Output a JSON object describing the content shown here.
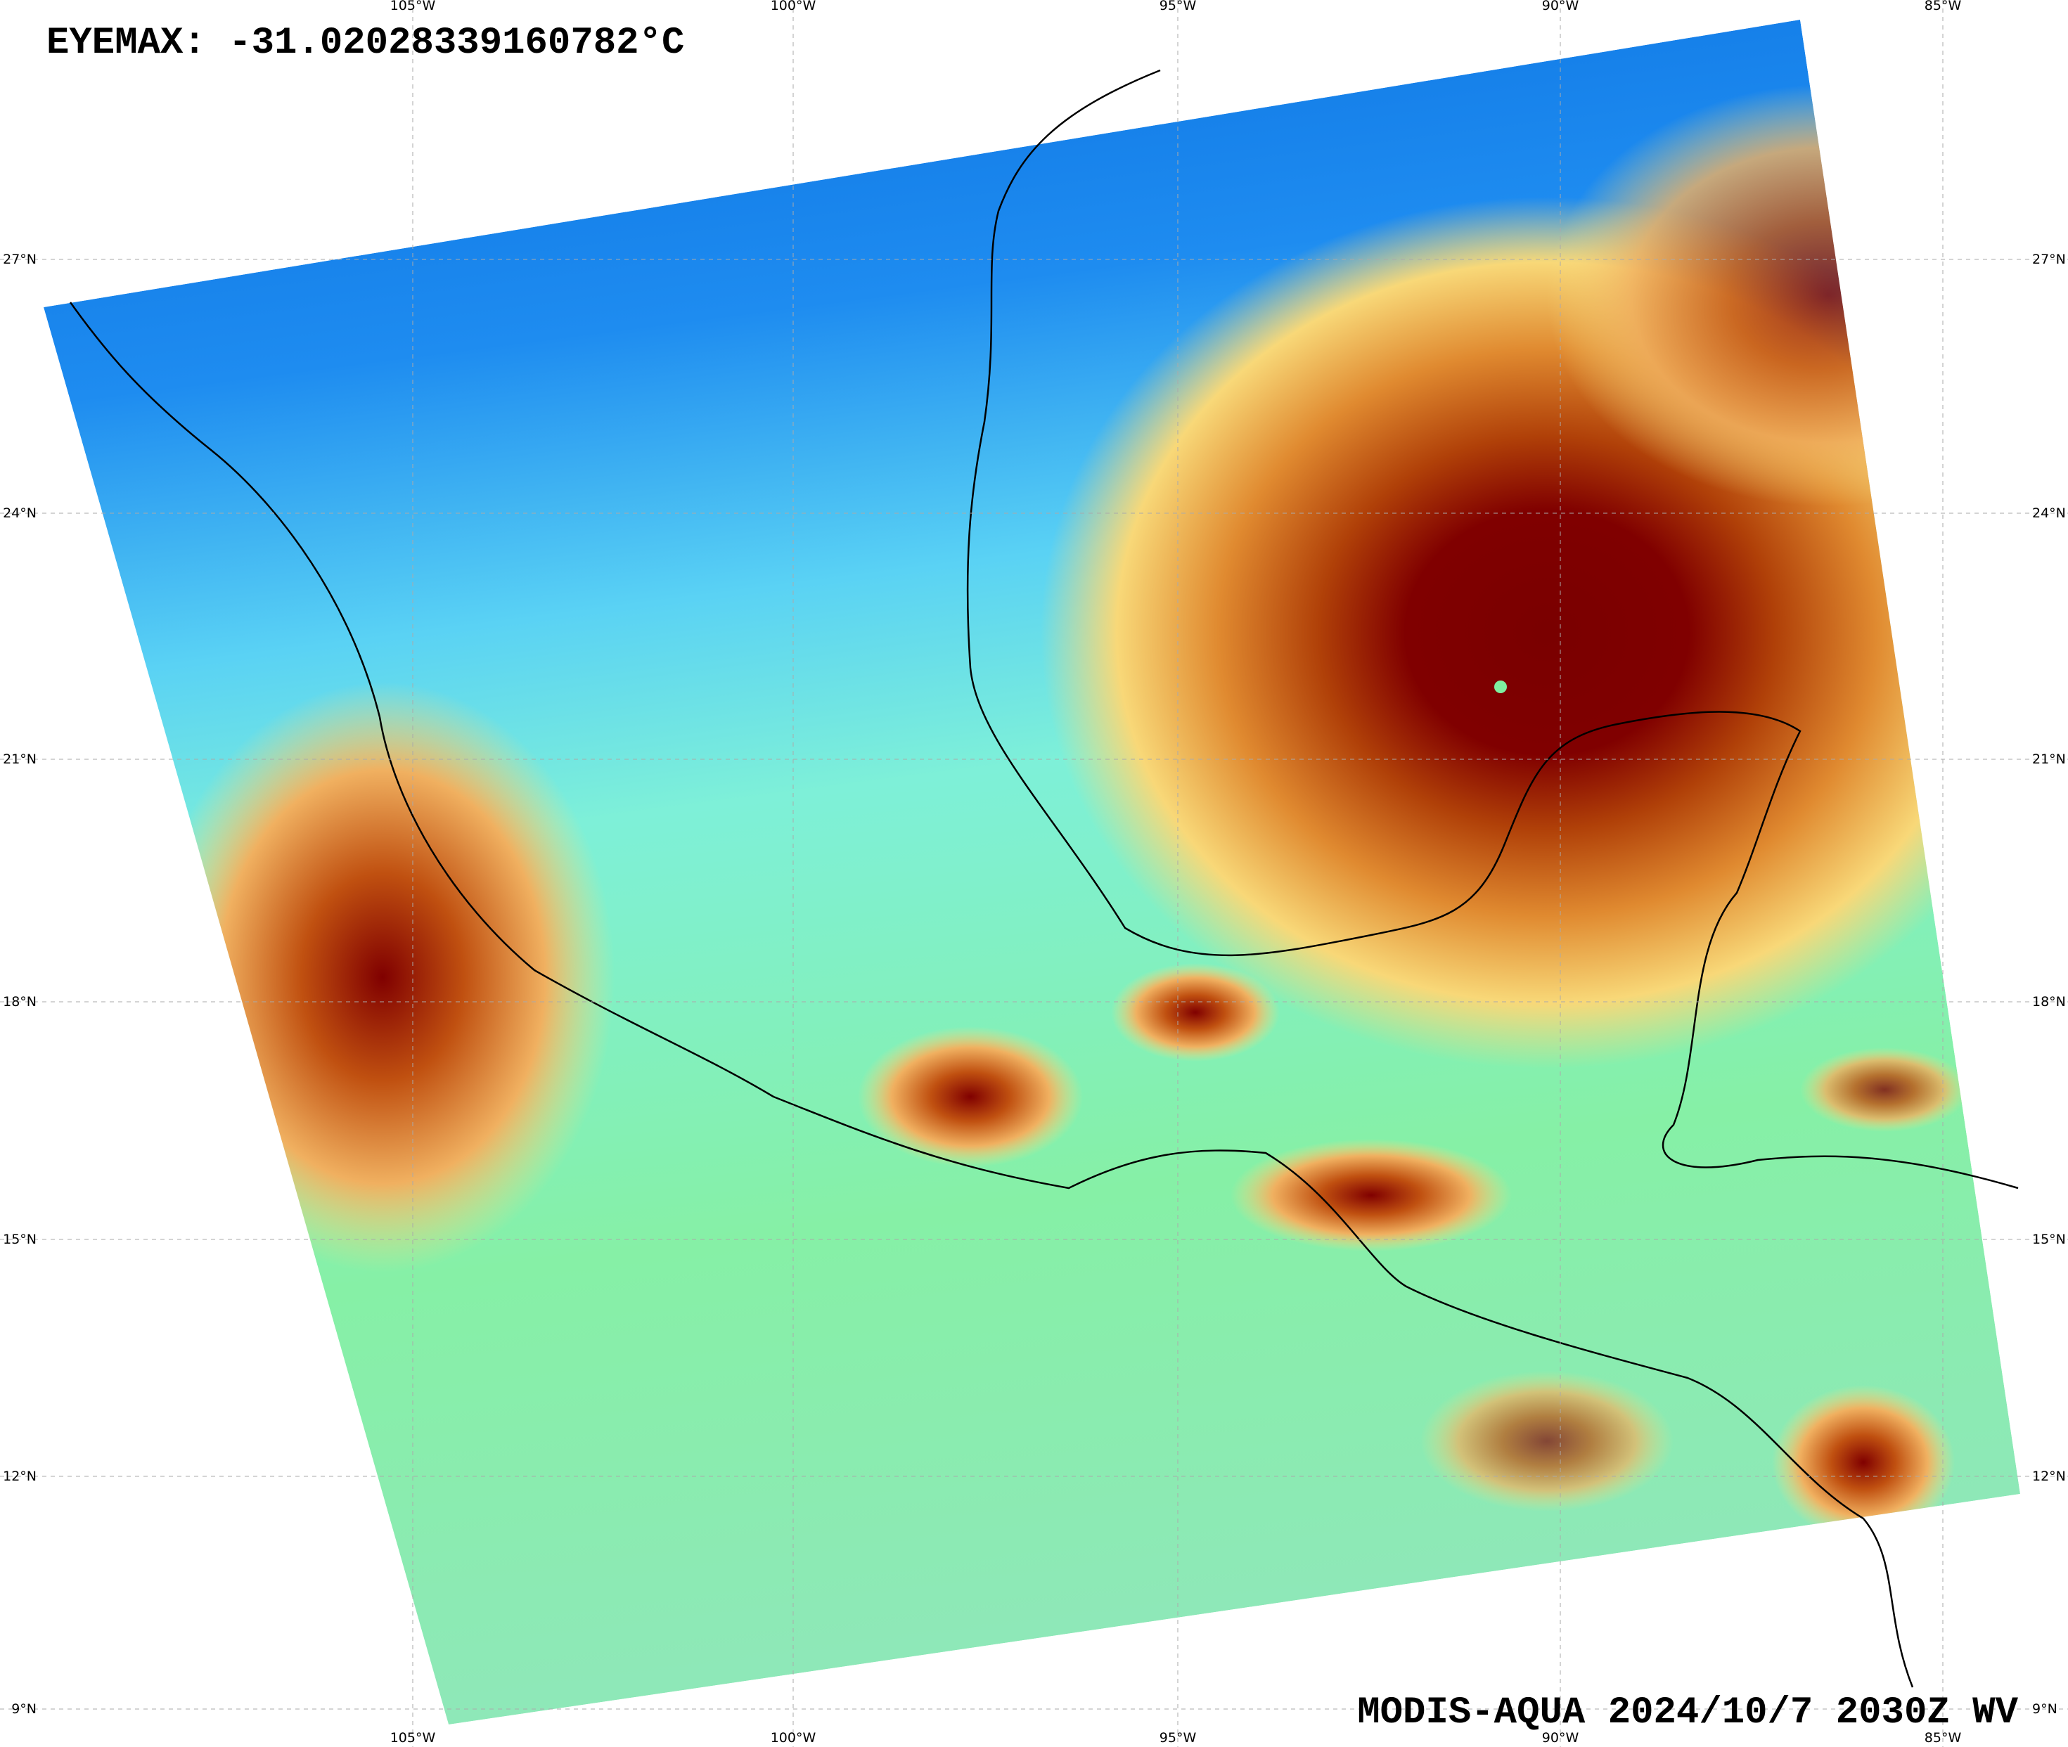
{
  "header": {
    "eyemax": "EYEMAX: -31.02028339160782°C"
  },
  "footer": {
    "caption": "MODIS-AQUA 2024/10/7 2030Z WV"
  },
  "map": {
    "lon_labels": [
      "105°W",
      "100°W",
      "95°W",
      "90°W",
      "85°W"
    ],
    "lat_labels": [
      "27°N",
      "24°N",
      "21°N",
      "18°N",
      "15°N",
      "12°N",
      "9°N"
    ]
  }
}
